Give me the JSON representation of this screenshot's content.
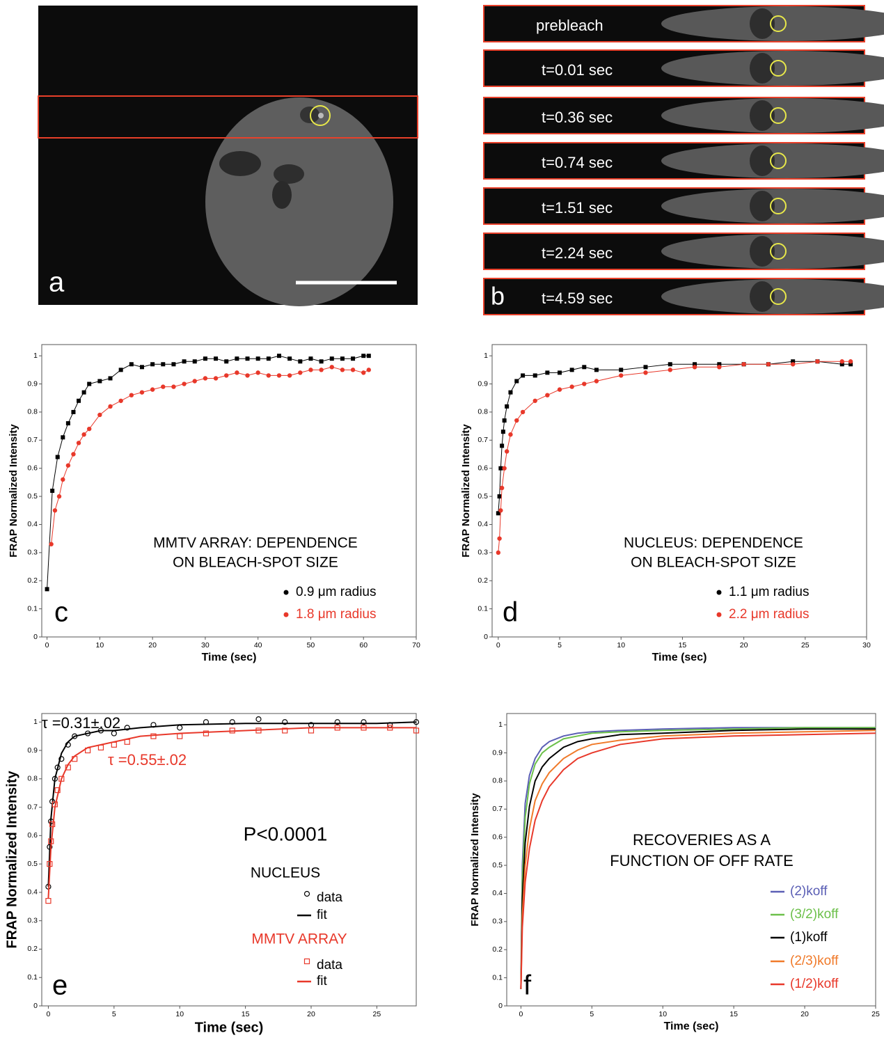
{
  "panels": {
    "a": {
      "label": "a"
    },
    "b": {
      "label": "b",
      "frames": [
        "prebleach",
        "t=0.01 sec",
        "t=0.36 sec",
        "t=0.74 sec",
        "t=1.51 sec",
        "t=2.24 sec",
        "t=4.59 sec"
      ]
    }
  },
  "chart_data": [
    {
      "type": "scatter",
      "panel_label": "c",
      "ylabel": "FRAP Normalized Intensity",
      "xlabel": "Time (sec)",
      "xlim": [
        -1,
        70
      ],
      "xticks": [
        0,
        10,
        20,
        30,
        40,
        50,
        60,
        70
      ],
      "ylim": [
        0,
        1.04
      ],
      "yticks": [
        0,
        0.1,
        0.2,
        0.3,
        0.4,
        0.5,
        0.6,
        0.7,
        0.8,
        0.9,
        1
      ],
      "annotations": [
        {
          "text": "MMTV ARRAY: DEPENDENCE"
        },
        {
          "text": "ON BLEACH-SPOT SIZE"
        }
      ],
      "series": [
        {
          "name": "0.9 μm radius",
          "color": "#000000",
          "marker": "square",
          "line": true,
          "x": [
            0,
            1,
            2,
            3,
            4,
            5,
            6,
            7,
            8,
            10,
            12,
            14,
            16,
            18,
            20,
            22,
            24,
            26,
            28,
            30,
            32,
            34,
            36,
            38,
            40,
            42,
            44,
            46,
            48,
            50,
            52,
            54,
            56,
            58,
            60,
            61
          ],
          "values": [
            0.17,
            0.52,
            0.64,
            0.71,
            0.76,
            0.8,
            0.84,
            0.87,
            0.9,
            0.91,
            0.92,
            0.95,
            0.97,
            0.96,
            0.97,
            0.97,
            0.97,
            0.98,
            0.98,
            0.99,
            0.99,
            0.98,
            0.99,
            0.99,
            0.99,
            0.99,
            1.0,
            0.99,
            0.98,
            0.99,
            0.98,
            0.99,
            0.99,
            0.99,
            1.0,
            1.0
          ]
        },
        {
          "name": "1.8 μm radius",
          "color": "#e8382a",
          "marker": "circle",
          "line": true,
          "x": [
            0.8,
            1.5,
            2.3,
            3,
            4,
            5,
            6,
            7,
            8,
            10,
            12,
            14,
            16,
            18,
            20,
            22,
            24,
            26,
            28,
            30,
            32,
            34,
            36,
            38,
            40,
            42,
            44,
            46,
            48,
            50,
            52,
            54,
            56,
            58,
            60,
            61
          ],
          "values": [
            0.33,
            0.45,
            0.5,
            0.56,
            0.61,
            0.65,
            0.69,
            0.72,
            0.74,
            0.79,
            0.82,
            0.84,
            0.86,
            0.87,
            0.88,
            0.89,
            0.89,
            0.9,
            0.91,
            0.92,
            0.92,
            0.93,
            0.94,
            0.93,
            0.94,
            0.93,
            0.93,
            0.93,
            0.94,
            0.95,
            0.95,
            0.96,
            0.95,
            0.95,
            0.94,
            0.95
          ]
        }
      ]
    },
    {
      "type": "scatter",
      "panel_label": "d",
      "ylabel": "FRAP Normalized Intensity",
      "xlabel": "Time (sec)",
      "xlim": [
        -0.5,
        30
      ],
      "xticks": [
        0,
        5,
        10,
        15,
        20,
        25,
        30
      ],
      "ylim": [
        0,
        1.04
      ],
      "yticks": [
        0,
        0.1,
        0.2,
        0.3,
        0.4,
        0.5,
        0.6,
        0.7,
        0.8,
        0.9,
        1
      ],
      "annotations": [
        {
          "text": "NUCLEUS: DEPENDENCE"
        },
        {
          "text": "ON BLEACH-SPOT SIZE"
        }
      ],
      "series": [
        {
          "name": "1.1 μm radius",
          "color": "#000000",
          "marker": "square",
          "line": true,
          "x": [
            0,
            0.1,
            0.2,
            0.3,
            0.4,
            0.5,
            0.7,
            1,
            1.5,
            2,
            3,
            4,
            5,
            6,
            7,
            8,
            10,
            12,
            14,
            16,
            18,
            20,
            22,
            24,
            26,
            28,
            28.7
          ],
          "values": [
            0.44,
            0.5,
            0.6,
            0.68,
            0.73,
            0.77,
            0.82,
            0.87,
            0.91,
            0.93,
            0.93,
            0.94,
            0.94,
            0.95,
            0.96,
            0.95,
            0.95,
            0.96,
            0.97,
            0.97,
            0.97,
            0.97,
            0.97,
            0.98,
            0.98,
            0.97,
            0.97
          ]
        },
        {
          "name": "2.2 μm radius",
          "color": "#e8382a",
          "marker": "circle",
          "line": true,
          "x": [
            0,
            0.1,
            0.2,
            0.3,
            0.5,
            0.7,
            1,
            1.5,
            2,
            3,
            4,
            5,
            6,
            7,
            8,
            10,
            12,
            14,
            16,
            18,
            20,
            22,
            24,
            26,
            28,
            28.7
          ],
          "values": [
            0.3,
            0.35,
            0.45,
            0.53,
            0.6,
            0.66,
            0.72,
            0.77,
            0.8,
            0.84,
            0.86,
            0.88,
            0.89,
            0.9,
            0.91,
            0.93,
            0.94,
            0.95,
            0.96,
            0.96,
            0.97,
            0.97,
            0.97,
            0.98,
            0.98,
            0.98
          ]
        }
      ]
    },
    {
      "type": "scatter",
      "panel_label": "e",
      "ylabel": "FRAP Normalized Intensity",
      "xlabel": "Time (sec)",
      "xlim": [
        -0.5,
        28
      ],
      "xticks": [
        0,
        5,
        10,
        15,
        20,
        25
      ],
      "ylim": [
        0,
        1.03
      ],
      "yticks": [
        0,
        0.1,
        0.2,
        0.3,
        0.4,
        0.5,
        0.6,
        0.7,
        0.8,
        0.9,
        1
      ],
      "annotations": [
        {
          "text": "τ =0.31±.02",
          "color": "#000000"
        },
        {
          "text": "τ =0.55±.02",
          "color": "#e8382a"
        },
        {
          "text": "P<0.0001",
          "color": "#000000"
        },
        {
          "text": "NUCLEUS",
          "color": "#000000"
        },
        {
          "text": "MMTV ARRAY",
          "color": "#e8382a"
        }
      ],
      "series": [
        {
          "name": "data",
          "color": "#000000",
          "marker": "open-circle",
          "line": false,
          "x": [
            0,
            0.1,
            0.2,
            0.3,
            0.5,
            0.7,
            1,
            1.5,
            2,
            3,
            4,
            5,
            6,
            8,
            10,
            12,
            14,
            16,
            18,
            20,
            22,
            24,
            26,
            28
          ],
          "values": [
            0.42,
            0.56,
            0.65,
            0.72,
            0.8,
            0.84,
            0.87,
            0.92,
            0.95,
            0.96,
            0.97,
            0.96,
            0.98,
            0.99,
            0.98,
            1.0,
            1.0,
            1.01,
            1.0,
            0.99,
            1.0,
            1.0,
            0.99,
            1.0
          ]
        },
        {
          "name": "fit",
          "color": "#000000",
          "marker": "none",
          "line": true,
          "x": [
            0,
            0.2,
            0.5,
            1,
            1.5,
            2,
            3,
            4,
            5,
            7,
            10,
            15,
            20,
            25,
            28
          ],
          "values": [
            0.42,
            0.66,
            0.8,
            0.89,
            0.93,
            0.95,
            0.96,
            0.97,
            0.97,
            0.98,
            0.99,
            0.995,
            0.995,
            0.995,
            1.0
          ]
        },
        {
          "name": "data",
          "color": "#e8382a",
          "marker": "open-square",
          "line": false,
          "x": [
            0,
            0.1,
            0.2,
            0.3,
            0.5,
            0.7,
            1,
            1.5,
            2,
            3,
            4,
            5,
            6,
            8,
            10,
            12,
            14,
            16,
            18,
            20,
            22,
            24,
            26,
            28
          ],
          "values": [
            0.37,
            0.5,
            0.58,
            0.64,
            0.71,
            0.76,
            0.8,
            0.84,
            0.87,
            0.9,
            0.91,
            0.92,
            0.93,
            0.95,
            0.95,
            0.96,
            0.97,
            0.97,
            0.97,
            0.97,
            0.98,
            0.98,
            0.98,
            0.97
          ]
        },
        {
          "name": "fit",
          "color": "#e8382a",
          "marker": "none",
          "line": true,
          "x": [
            0,
            0.2,
            0.5,
            1,
            1.5,
            2,
            3,
            4,
            5,
            7,
            10,
            15,
            20,
            25,
            28
          ],
          "values": [
            0.38,
            0.56,
            0.7,
            0.8,
            0.85,
            0.88,
            0.91,
            0.92,
            0.93,
            0.95,
            0.96,
            0.97,
            0.98,
            0.98,
            0.98
          ]
        }
      ]
    },
    {
      "type": "line",
      "panel_label": "f",
      "ylabel": "FRAP Normalized Intensity",
      "xlabel": "Time (sec)",
      "xlim": [
        -1,
        25
      ],
      "xticks": [
        0,
        5,
        10,
        15,
        20,
        25
      ],
      "ylim": [
        0,
        1.04
      ],
      "yticks": [
        0,
        0.1,
        0.2,
        0.3,
        0.4,
        0.5,
        0.6,
        0.7,
        0.8,
        0.9,
        1
      ],
      "annotations": [
        {
          "text": "RECOVERIES AS A"
        },
        {
          "text": "FUNCTION OF OFF RATE"
        }
      ],
      "x": [
        0,
        0.1,
        0.3,
        0.6,
        1,
        1.5,
        2,
        3,
        4,
        5,
        7,
        10,
        15,
        20,
        25
      ],
      "series": [
        {
          "name": "(2)koff",
          "color": "#5b5fb5",
          "marker": "none",
          "line": true,
          "values": [
            0.06,
            0.5,
            0.72,
            0.82,
            0.88,
            0.92,
            0.94,
            0.96,
            0.97,
            0.975,
            0.98,
            0.985,
            0.99,
            0.99,
            0.99
          ]
        },
        {
          "name": "(3/2)koff",
          "color": "#6cc04a",
          "marker": "none",
          "line": true,
          "values": [
            0.06,
            0.45,
            0.67,
            0.79,
            0.86,
            0.9,
            0.92,
            0.95,
            0.96,
            0.97,
            0.975,
            0.98,
            0.985,
            0.99,
            0.99
          ]
        },
        {
          "name": "(1)koff",
          "color": "#000000",
          "marker": "none",
          "line": true,
          "values": [
            0.06,
            0.38,
            0.58,
            0.71,
            0.8,
            0.85,
            0.88,
            0.92,
            0.94,
            0.95,
            0.965,
            0.97,
            0.98,
            0.985,
            0.985
          ]
        },
        {
          "name": "(2/3)koff",
          "color": "#f07a2a",
          "marker": "none",
          "line": true,
          "values": [
            0.06,
            0.32,
            0.5,
            0.63,
            0.73,
            0.79,
            0.83,
            0.88,
            0.91,
            0.93,
            0.945,
            0.96,
            0.97,
            0.975,
            0.98
          ]
        },
        {
          "name": "(1/2)koff",
          "color": "#e8382a",
          "marker": "none",
          "line": true,
          "values": [
            0.06,
            0.28,
            0.44,
            0.56,
            0.66,
            0.73,
            0.78,
            0.84,
            0.88,
            0.9,
            0.93,
            0.95,
            0.96,
            0.965,
            0.97
          ]
        }
      ]
    }
  ]
}
